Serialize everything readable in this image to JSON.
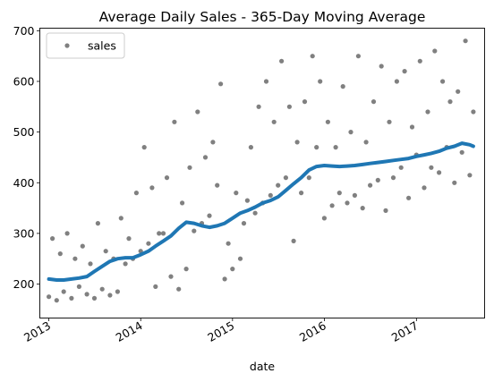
{
  "chart_data": {
    "type": "scatter",
    "title": "Average Daily Sales - 365-Day Moving Average",
    "xlabel": "date",
    "ylabel": "",
    "xlim": [
      "2012-11-26",
      "2017-09-29"
    ],
    "ylim": [
      133,
      705
    ],
    "yticks": [
      200,
      300,
      400,
      500,
      600,
      700
    ],
    "xticks": [
      {
        "date": "2013-01-01",
        "label": "2013"
      },
      {
        "date": "2014-01-01",
        "label": "2014"
      },
      {
        "date": "2015-01-01",
        "label": "2015"
      },
      {
        "date": "2016-01-01",
        "label": "2016"
      },
      {
        "date": "2017-01-01",
        "label": "2017"
      }
    ],
    "legend": {
      "position": "upper-left",
      "entries": [
        "sales"
      ]
    },
    "colors": {
      "points": "#808080",
      "trend": "#1f77b4"
    },
    "series": [
      {
        "name": "sales",
        "kind": "points",
        "x": [
          "2013-01-01",
          "2013-01-15",
          "2013-02-01",
          "2013-02-15",
          "2013-03-01",
          "2013-03-15",
          "2013-04-01",
          "2013-04-15",
          "2013-05-01",
          "2013-05-15",
          "2013-06-01",
          "2013-06-15",
          "2013-07-01",
          "2013-07-15",
          "2013-08-01",
          "2013-08-15",
          "2013-09-01",
          "2013-09-15",
          "2013-10-01",
          "2013-10-15",
          "2013-11-01",
          "2013-11-15",
          "2013-12-01",
          "2013-12-15",
          "2014-01-01",
          "2014-01-15",
          "2014-02-01",
          "2014-02-15",
          "2014-03-01",
          "2014-03-15",
          "2014-04-01",
          "2014-04-15",
          "2014-05-01",
          "2014-05-15",
          "2014-06-01",
          "2014-06-15",
          "2014-07-01",
          "2014-07-15",
          "2014-08-01",
          "2014-08-15",
          "2014-09-01",
          "2014-09-15",
          "2014-10-01",
          "2014-10-15",
          "2014-11-01",
          "2014-11-15",
          "2014-12-01",
          "2014-12-15",
          "2015-01-01",
          "2015-01-15",
          "2015-02-01",
          "2015-02-15",
          "2015-03-01",
          "2015-03-15",
          "2015-04-01",
          "2015-04-15",
          "2015-05-01",
          "2015-05-15",
          "2015-06-01",
          "2015-06-15",
          "2015-07-01",
          "2015-07-15",
          "2015-08-01",
          "2015-08-15",
          "2015-09-01",
          "2015-09-15",
          "2015-10-01",
          "2015-10-15",
          "2015-11-01",
          "2015-11-15",
          "2015-12-01",
          "2015-12-15",
          "2016-01-01",
          "2016-01-15",
          "2016-02-01",
          "2016-02-15",
          "2016-03-01",
          "2016-03-15",
          "2016-04-01",
          "2016-04-15",
          "2016-05-01",
          "2016-05-15",
          "2016-06-01",
          "2016-06-15",
          "2016-07-01",
          "2016-07-15",
          "2016-08-01",
          "2016-08-15",
          "2016-09-01",
          "2016-09-15",
          "2016-10-01",
          "2016-10-15",
          "2016-11-01",
          "2016-11-15",
          "2016-12-01",
          "2016-12-15",
          "2017-01-01",
          "2017-01-15",
          "2017-02-01",
          "2017-02-15",
          "2017-03-01",
          "2017-03-15",
          "2017-04-01",
          "2017-04-15",
          "2017-05-01",
          "2017-05-15",
          "2017-06-01",
          "2017-06-15",
          "2017-07-01",
          "2017-07-15",
          "2017-08-01",
          "2017-08-15"
        ],
        "y": [
          175,
          290,
          168,
          260,
          185,
          300,
          172,
          250,
          195,
          275,
          180,
          240,
          172,
          320,
          190,
          265,
          178,
          250,
          185,
          330,
          240,
          290,
          250,
          380,
          265,
          470,
          280,
          390,
          195,
          300,
          300,
          410,
          215,
          520,
          190,
          360,
          230,
          430,
          305,
          540,
          320,
          450,
          335,
          480,
          395,
          595,
          210,
          280,
          230,
          380,
          250,
          320,
          365,
          470,
          340,
          550,
          360,
          600,
          375,
          520,
          395,
          640,
          410,
          550,
          285,
          480,
          380,
          560,
          410,
          650,
          470,
          600,
          330,
          520,
          355,
          470,
          380,
          590,
          360,
          500,
          375,
          650,
          350,
          480,
          395,
          560,
          405,
          630,
          345,
          520,
          410,
          600,
          430,
          620,
          370,
          510,
          455,
          640,
          390,
          540,
          430,
          660,
          420,
          600,
          470,
          560,
          400,
          580,
          460,
          680,
          415,
          540
        ]
      },
      {
        "name": "",
        "kind": "trend",
        "x": [
          "2013-01-01",
          "2013-02-01",
          "2013-03-01",
          "2013-04-01",
          "2013-05-01",
          "2013-06-01",
          "2013-07-01",
          "2013-08-01",
          "2013-09-01",
          "2013-10-01",
          "2013-11-01",
          "2013-12-01",
          "2014-01-01",
          "2014-02-01",
          "2014-03-01",
          "2014-04-01",
          "2014-05-01",
          "2014-06-01",
          "2014-07-01",
          "2014-08-01",
          "2014-09-01",
          "2014-10-01",
          "2014-11-01",
          "2014-12-01",
          "2015-01-01",
          "2015-02-01",
          "2015-03-01",
          "2015-04-01",
          "2015-05-01",
          "2015-06-01",
          "2015-07-01",
          "2015-08-01",
          "2015-09-01",
          "2015-10-01",
          "2015-11-01",
          "2015-12-01",
          "2016-01-01",
          "2016-02-01",
          "2016-03-01",
          "2016-04-01",
          "2016-05-01",
          "2016-06-01",
          "2016-07-01",
          "2016-08-01",
          "2016-09-01",
          "2016-10-01",
          "2016-11-01",
          "2016-12-01",
          "2017-01-01",
          "2017-02-01",
          "2017-03-01",
          "2017-04-01",
          "2017-05-01",
          "2017-06-01",
          "2017-07-01",
          "2017-08-01",
          "2017-08-15"
        ],
        "y": [
          210,
          208,
          208,
          210,
          212,
          215,
          225,
          235,
          245,
          250,
          252,
          252,
          258,
          265,
          275,
          285,
          295,
          310,
          322,
          320,
          315,
          312,
          315,
          320,
          330,
          340,
          345,
          352,
          360,
          365,
          372,
          385,
          398,
          410,
          425,
          432,
          434,
          433,
          432,
          433,
          434,
          436,
          438,
          440,
          442,
          444,
          446,
          448,
          452,
          455,
          458,
          462,
          468,
          472,
          478,
          475,
          472
        ]
      }
    ]
  }
}
